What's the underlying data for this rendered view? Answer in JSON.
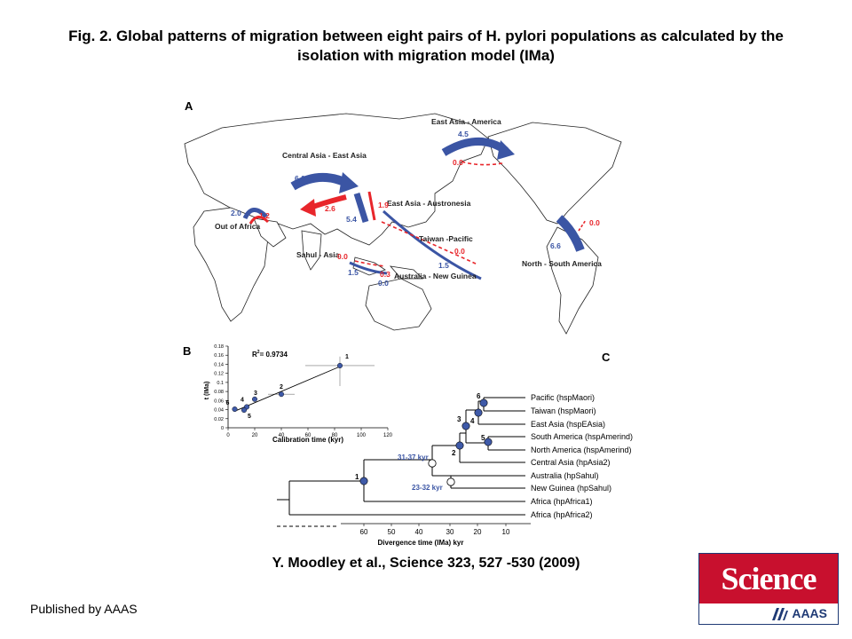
{
  "slide": {
    "title_line1": "Fig. 2. Global patterns of migration between eight pairs of H. pylori populations as calculated by the",
    "title_line2": "isolation with migration model (IMa)",
    "citation": "Y.  Moodley et al.,  Science  323, 527 -530 (2009)",
    "publisher": "Published by AAAS",
    "logo_title": "Science",
    "logo_subtitle": "AAAS"
  },
  "panel_a": {
    "label": "A",
    "label_c": "C",
    "pairs": [
      {
        "name": "East Asia - America",
        "values": [
          "4.5",
          "0.0"
        ]
      },
      {
        "name": "Central Asia - East Asia",
        "values": [
          "6.0",
          "2.6"
        ]
      },
      {
        "name": "Out of Africa",
        "values": [
          "2.0",
          "1.2"
        ]
      },
      {
        "name": "East Asia - Austronesia",
        "values": [
          "5.4",
          "1.9"
        ]
      },
      {
        "name": "Taiwan -Pacific",
        "values": [
          "0.0",
          "1.5"
        ]
      },
      {
        "name": "Sahul - Asia",
        "values": [
          "0.0",
          "1.5"
        ]
      },
      {
        "name": "Australia - New Guinea",
        "values": [
          "0.3",
          "0.0"
        ]
      },
      {
        "name": "North - South America",
        "values": [
          "6.6",
          "0.0"
        ]
      }
    ]
  },
  "panel_b": {
    "label": "B",
    "r2_label": "R",
    "r2_value": "= 0.9734",
    "xlabel": "Calibration time (kyr)",
    "ylabel": "t (IMa)",
    "x_ticks": [
      "0",
      "20",
      "40",
      "60",
      "80",
      "100",
      "120"
    ],
    "y_ticks": [
      "0",
      "0.02",
      "0.04",
      "0.06",
      "0.08",
      "0.1",
      "0.12",
      "0.14",
      "0.16",
      "0.18"
    ],
    "points": [
      {
        "id": "1",
        "x": 84,
        "t": 0.137
      },
      {
        "id": "2",
        "x": 40,
        "t": 0.074
      },
      {
        "id": "3",
        "x": 20,
        "t": 0.063
      },
      {
        "id": "4",
        "x": 14,
        "t": 0.046
      },
      {
        "id": "5",
        "x": 12,
        "t": 0.039
      },
      {
        "id": "6",
        "x": 5,
        "t": 0.041
      }
    ]
  },
  "tree": {
    "taxa": [
      "Pacific (hspMaori)",
      "Taiwan (hspMaori)",
      "East Asia (hspEAsia)",
      "South America (hspAmerind)",
      "North America (hspAmerind)",
      "Central Asia (hpAsia2)",
      "Australia (hpSahul)",
      "New Guinea (hpSahul)",
      "Africa (hpAfrica1)",
      "Africa (hpAfrica2)"
    ],
    "node_labels": [
      "1",
      "2",
      "3",
      "4",
      "5",
      "6"
    ],
    "calibrations": [
      "31-37 kyr",
      "23-32 kyr"
    ],
    "x_ticks": [
      "60",
      "50",
      "40",
      "30",
      "20",
      "10"
    ],
    "xlabel": "Divergence time (IMa) kyr"
  },
  "colors": {
    "blue": "#3b55a4",
    "red": "#e8262b",
    "node": "#3f5aa8"
  }
}
